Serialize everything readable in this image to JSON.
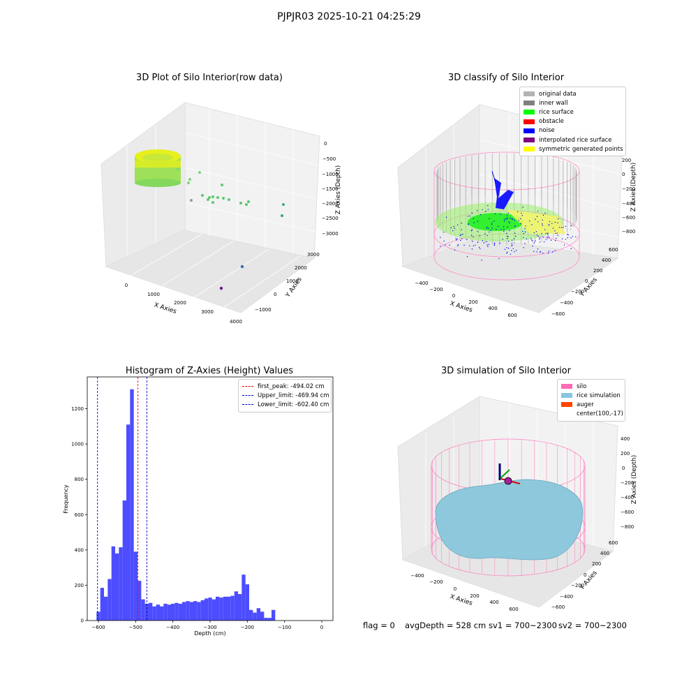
{
  "suptitle": "PJPJR03 2025-10-21 04:25:29",
  "colors": {
    "hist_bar": "#4d4dff",
    "first_peak_line": "#ff0000",
    "limit_line": "#0000cc",
    "rice_simulation": "#87c6e0",
    "silo_wire": "#ff69b4"
  },
  "panel1": {
    "title": "3D Plot of Silo Interior(row data)",
    "x_ticks": [
      "0",
      "1000",
      "2000",
      "3000",
      "4000"
    ],
    "y_ticks": [
      "−1000",
      "0",
      "1000",
      "2000",
      "3000"
    ],
    "z_ticks": [
      "0",
      "−500",
      "−1000",
      "−1500",
      "−2000",
      "−2500",
      "−3000"
    ],
    "xlabel": "X Axies",
    "ylabel": "Y Axies",
    "zlabel": "Z Axies (Depth)"
  },
  "panel2": {
    "title": "3D classify of Silo Interior",
    "legend": [
      {
        "label": "original data",
        "color": "#b3b3b3"
      },
      {
        "label": "inner wall",
        "color": "#808080"
      },
      {
        "label": "rice surface",
        "color": "#00ff00"
      },
      {
        "label": "obstacle",
        "color": "#ff0000"
      },
      {
        "label": "noise",
        "color": "#0000ff"
      },
      {
        "label": "interpolated rice surface",
        "color": "#800080"
      },
      {
        "label": "symmetric generated points",
        "color": "#ffff00"
      }
    ],
    "x_ticks": [
      "−400",
      "−200",
      "0",
      "200",
      "400",
      "600"
    ],
    "y_ticks": [
      "600",
      "400",
      "200",
      "0",
      "−200",
      "−400",
      "−600"
    ],
    "z_ticks": [
      "200",
      "0",
      "−200",
      "−400",
      "−600",
      "−800"
    ],
    "z_top_tick": "0",
    "xlabel": "X Axies",
    "ylabel": "Y Axies",
    "zlabel": "Z Axies (Depth)"
  },
  "panel3": {
    "title": "Histogram of Z-Axies (Height) Values",
    "xlabel": "Depth (cm)",
    "ylabel": "Frequency",
    "legend": [
      {
        "label": "first_peak: -494.02 cm",
        "color": "#ff0000"
      },
      {
        "label": "Upper_limit: -469.94 cm",
        "color": "#0000cc"
      },
      {
        "label": "Lower_limit: -602.40 cm",
        "color": "#0000cc"
      }
    ]
  },
  "panel4": {
    "title": "3D simulation of Silo Interior",
    "legend": [
      {
        "label": "silo",
        "color": "#ff69b4"
      },
      {
        "label": "rice simulation",
        "color": "#87c6e0"
      },
      {
        "label": "auger",
        "color": "#ff4500"
      },
      {
        "label": "center(100,-17)",
        "color": ""
      }
    ],
    "x_ticks": [
      "−400",
      "−200",
      "0",
      "200",
      "400",
      "600"
    ],
    "y_ticks": [
      "600",
      "400",
      "200",
      "0",
      "−200",
      "−400",
      "−600"
    ],
    "z_ticks": [
      "400",
      "200",
      "0",
      "−200",
      "−400",
      "−600",
      "−800"
    ],
    "xlabel": "X Axies",
    "ylabel": "Y Axies",
    "zlabel": "Z Axies (Depth)"
  },
  "footer": {
    "flag": "flag = 0",
    "avg_depth": "avgDepth = 528 cm",
    "sv1": "sv1 = 700~2300",
    "sv2": "sv2 = 700~2300"
  },
  "chart_data": [
    {
      "type": "scatter",
      "title": "3D Plot of Silo Interior(row data)",
      "xlabel": "X Axies",
      "ylabel": "Y Axies",
      "zlabel": "Z Axies (Depth)",
      "xlim": [
        -500,
        4000
      ],
      "ylim": [
        -1500,
        3500
      ],
      "zlim": [
        -3200,
        100
      ],
      "grid": true
    },
    {
      "type": "scatter",
      "title": "3D classify of Silo Interior",
      "xlabel": "X Axies",
      "ylabel": "Y Axies",
      "zlabel": "Z Axies (Depth)",
      "xlim": [
        -500,
        700
      ],
      "ylim": [
        -700,
        700
      ],
      "zlim": [
        -900,
        300
      ],
      "legend_position": "top-right",
      "grid": true
    },
    {
      "type": "bar",
      "title": "Histogram of Z-Axies (Height) Values",
      "xlabel": "Depth (cm)",
      "ylabel": "Frequency",
      "bin_start": -605,
      "bin_width": 10,
      "values": [
        50,
        185,
        135,
        235,
        420,
        380,
        415,
        680,
        1110,
        1310,
        390,
        225,
        120,
        95,
        100,
        80,
        90,
        80,
        95,
        90,
        95,
        100,
        95,
        105,
        110,
        105,
        110,
        105,
        115,
        125,
        130,
        120,
        135,
        130,
        135,
        135,
        140,
        165,
        150,
        260,
        205,
        60,
        45,
        70,
        50,
        15,
        15,
        60
      ],
      "xlim": [
        -630,
        30
      ],
      "ylim": [
        0,
        1380
      ],
      "x_ticks": [
        -600,
        -500,
        -400,
        -300,
        -200,
        -100,
        0
      ],
      "y_ticks": [
        0,
        200,
        400,
        600,
        800,
        1000,
        1200
      ],
      "reference_lines": {
        "first_peak": -494.02,
        "upper_limit": -469.94,
        "lower_limit": -602.4
      },
      "legend_position": "top-right",
      "grid": false
    },
    {
      "type": "scatter",
      "title": "3D simulation of Silo Interior",
      "xlabel": "X Axies",
      "ylabel": "Y Axies",
      "zlabel": "Z Axies (Depth)",
      "xlim": [
        -500,
        700
      ],
      "ylim": [
        -700,
        700
      ],
      "zlim": [
        -900,
        450
      ],
      "legend_position": "top-right",
      "grid": true
    }
  ]
}
